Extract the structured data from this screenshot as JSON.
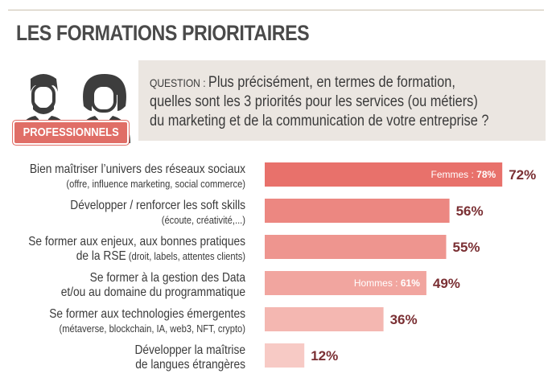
{
  "title": "LES FORMATIONS PRIORITAIRES",
  "badge": "PROFESSIONNELS",
  "question": {
    "prefix": "QUESTION : ",
    "line1": "Plus précisément, en termes de formation,",
    "line2": "quelles sont les 3 priorités pour les services (ou métiers)",
    "line3": "du marketing et de la communication de votre entreprise ?"
  },
  "colors": {
    "accent": "#e06e67",
    "value_text": "#7a2f33",
    "question_bg": "#ebe6e1",
    "bar_shades": [
      "#e8716b",
      "#ec8781",
      "#ee958f",
      "#f1a59f",
      "#f4b7b1",
      "#f7cac5"
    ]
  },
  "chart_data": {
    "type": "bar",
    "orientation": "horizontal",
    "xlim": [
      0,
      100
    ],
    "categories": [
      {
        "main": "Bien maîtriser l’univers des réseaux sociaux",
        "sub": "(offre, influence marketing, social commerce)"
      },
      {
        "main": "Développer / renforcer les soft skills",
        "sub": "(écoute, créativité,...)"
      },
      {
        "main": "Se former aux enjeux, aux bonnes pratiques",
        "sub2main": "de la RSE",
        "sub": " (droit, labels, attentes clients)"
      },
      {
        "main": "Se former à la gestion des Data",
        "main2": "et/ou au domaine du programmatique"
      },
      {
        "main": "Se former aux technologies émergentes",
        "sub": "(métaverse, blockchain, IA, web3, NFT, crypto)"
      },
      {
        "main": "Développer la maîtrise",
        "main2": "de langues étrangères"
      }
    ],
    "values": [
      72,
      56,
      55,
      49,
      36,
      12
    ],
    "value_labels": [
      "72%",
      "56%",
      "55%",
      "49%",
      "36%",
      "12%"
    ],
    "annotations": [
      {
        "index": 0,
        "label": "Femmes : ",
        "value": "78%"
      },
      {
        "index": 3,
        "label": "Hommes : ",
        "value": "61%"
      }
    ]
  }
}
